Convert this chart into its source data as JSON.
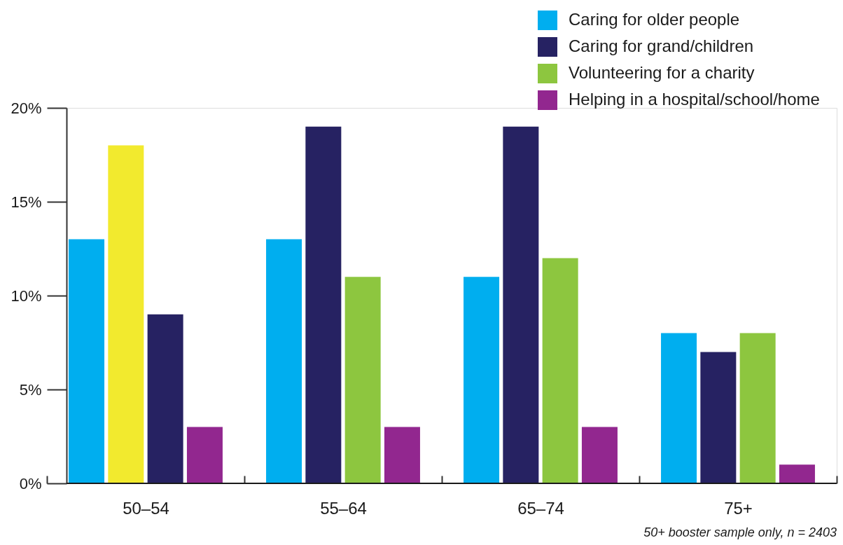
{
  "chart_data": {
    "type": "bar",
    "categories": [
      "50–54",
      "55–64",
      "65–74",
      "75+"
    ],
    "series": [
      {
        "name": "Caring for older people",
        "color": "#00aeef",
        "values": [
          13,
          13,
          11,
          8
        ]
      },
      {
        "name": "Caring for grand/children",
        "color": "#262262",
        "colors": [
          "#f2ea2e",
          "#262262",
          "#262262",
          "#262262"
        ],
        "values": [
          18,
          19,
          19,
          7
        ]
      },
      {
        "name": "Volunteering for a charity",
        "color": "#8dc63f",
        "colors": [
          "#262262",
          "#8dc63f",
          "#8dc63f",
          "#8dc63f"
        ],
        "values": [
          9,
          11,
          12,
          8
        ]
      },
      {
        "name": "Helping in a hospital/school/home",
        "color": "#92278f",
        "values": [
          3,
          3,
          3,
          1
        ]
      }
    ],
    "ylim": [
      0,
      20
    ],
    "yticks": [
      {
        "value": 0,
        "label": "0%"
      },
      {
        "value": 5,
        "label": "5%"
      },
      {
        "value": 10,
        "label": "10%"
      },
      {
        "value": 15,
        "label": "15%"
      },
      {
        "value": 20,
        "label": "20%"
      }
    ],
    "grid": false,
    "legend": "top right",
    "annotations": [
      "50+ booster sample only, n = 2403"
    ]
  }
}
